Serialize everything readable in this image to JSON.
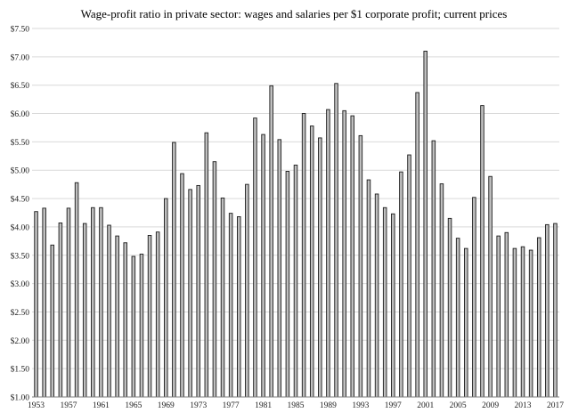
{
  "chart_data": {
    "type": "bar",
    "title": "Wage-profit ratio in private sector: wages and salaries per $1 corporate profit; current prices",
    "xlabel": "",
    "ylabel": "",
    "ylim": [
      1.0,
      7.5
    ],
    "y_tick_step": 0.5,
    "y_tick_format": "$0.00",
    "grid": "horizontal",
    "legend": "none",
    "bar_color": "#bfbfbf",
    "bar_edge_color": "#1a1a1a",
    "categories": [
      1953,
      1954,
      1955,
      1956,
      1957,
      1958,
      1959,
      1960,
      1961,
      1962,
      1963,
      1964,
      1965,
      1966,
      1967,
      1968,
      1969,
      1970,
      1971,
      1972,
      1973,
      1974,
      1975,
      1976,
      1977,
      1978,
      1979,
      1980,
      1981,
      1982,
      1983,
      1984,
      1985,
      1986,
      1987,
      1988,
      1989,
      1990,
      1991,
      1992,
      1993,
      1994,
      1995,
      1996,
      1997,
      1998,
      1999,
      2000,
      2001,
      2002,
      2003,
      2004,
      2005,
      2006,
      2007,
      2008,
      2009,
      2010,
      2011,
      2012,
      2013,
      2014,
      2015,
      2016,
      2017
    ],
    "x_tick_labels": [
      "1953",
      "1957",
      "1961",
      "1965",
      "1969",
      "1973",
      "1977",
      "1981",
      "1985",
      "1989",
      "1993",
      "1997",
      "2001",
      "2005",
      "2009",
      "2013",
      "2017"
    ],
    "values": [
      4.27,
      4.33,
      3.68,
      4.07,
      4.33,
      4.78,
      4.06,
      4.34,
      4.34,
      4.03,
      3.84,
      3.72,
      3.48,
      3.52,
      3.85,
      3.91,
      4.5,
      5.49,
      4.94,
      4.66,
      4.73,
      5.66,
      5.15,
      4.51,
      4.24,
      4.18,
      4.75,
      5.92,
      5.63,
      6.49,
      5.54,
      4.98,
      5.09,
      6.0,
      5.78,
      5.57,
      6.07,
      6.53,
      6.05,
      5.96,
      5.61,
      4.83,
      4.58,
      4.34,
      4.23,
      4.97,
      5.27,
      6.37,
      7.1,
      5.52,
      4.76,
      4.15,
      3.8,
      3.62,
      4.52,
      6.14,
      4.89,
      3.84,
      3.9,
      3.62,
      3.65,
      3.59,
      3.81,
      4.04,
      4.06
    ]
  }
}
